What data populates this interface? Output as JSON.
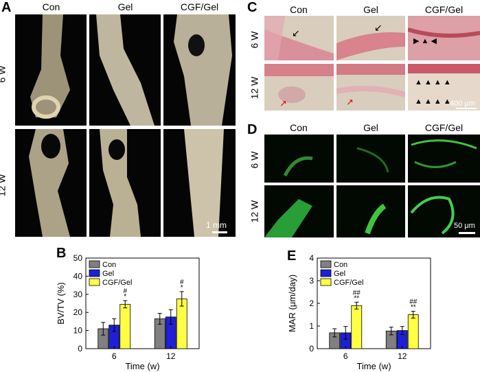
{
  "panel_labels": {
    "a": "A",
    "b": "B",
    "c": "C",
    "d": "D",
    "e": "E"
  },
  "groups": [
    "Con",
    "Gel",
    "CGF/Gel"
  ],
  "timepoints": [
    "6 W",
    "12 W"
  ],
  "scalebars": {
    "a": "1 mm",
    "c": "400 μm",
    "d": "50 μm"
  },
  "colors": {
    "con": "#808080",
    "gel": "#1f1fd6",
    "cgf": "#ffff44"
  },
  "chart_data": [
    {
      "type": "bar",
      "panel": "B",
      "categories": [
        "6",
        "12"
      ],
      "series": [
        {
          "name": "Con",
          "values": [
            11,
            16.5
          ],
          "errors": [
            3.5,
            3
          ]
        },
        {
          "name": "Gel",
          "values": [
            13,
            17.5
          ],
          "errors": [
            3.5,
            4
          ]
        },
        {
          "name": "CGF/Gel",
          "values": [
            24.5,
            27.5
          ],
          "errors": [
            2,
            4
          ]
        }
      ],
      "annotations": [
        {
          "category": "6",
          "series": "CGF/Gel",
          "lines": [
            "#",
            "*"
          ]
        },
        {
          "category": "12",
          "series": "CGF/Gel",
          "lines": [
            "#",
            "*"
          ]
        }
      ],
      "xlabel": "Time (w)",
      "ylabel": "BV/TV (%)",
      "ylim": [
        0,
        50
      ],
      "yticks": [
        "0",
        "10",
        "20",
        "30",
        "40",
        "50"
      ],
      "legend": "top-left"
    },
    {
      "type": "bar",
      "panel": "E",
      "categories": [
        "6",
        "12"
      ],
      "series": [
        {
          "name": "Con",
          "values": [
            0.7,
            0.78
          ],
          "errors": [
            0.18,
            0.17
          ]
        },
        {
          "name": "Gel",
          "values": [
            0.7,
            0.8
          ],
          "errors": [
            0.28,
            0.18
          ]
        },
        {
          "name": "CGF/Gel",
          "values": [
            1.9,
            1.5
          ],
          "errors": [
            0.15,
            0.15
          ]
        }
      ],
      "annotations": [
        {
          "category": "6",
          "series": "CGF/Gel",
          "lines": [
            "##",
            "**"
          ]
        },
        {
          "category": "12",
          "series": "CGF/Gel",
          "lines": [
            "##",
            "**"
          ]
        }
      ],
      "xlabel": "Time (w)",
      "ylabel": "MAR (μm/day)",
      "ylim": [
        0,
        4
      ],
      "yticks": [
        "0",
        "1",
        "2",
        "3",
        "4"
      ],
      "legend": "top-left"
    }
  ]
}
